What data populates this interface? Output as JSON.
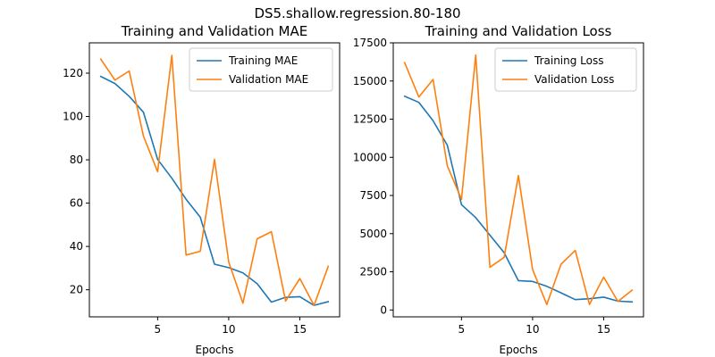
{
  "figure": {
    "suptitle": "DS5.shallow.regression.80-180"
  },
  "colors": {
    "training": "#1f77b4",
    "validation": "#ff7f0e",
    "axes": "#000000",
    "legend_border": "#cccccc"
  },
  "chart_data": [
    {
      "type": "line",
      "title": "Training and Validation MAE",
      "xlabel": "Epochs",
      "ylabel": "",
      "xlim": [
        0.2,
        17.8
      ],
      "ylim": [
        7.5,
        134
      ],
      "xticks": [
        5,
        10,
        15
      ],
      "yticks": [
        20,
        40,
        60,
        80,
        100,
        120
      ],
      "grid": false,
      "legend_position": "top-right",
      "x": [
        1,
        2,
        3,
        4,
        5,
        6,
        7,
        8,
        9,
        10,
        11,
        12,
        13,
        14,
        15,
        16,
        17
      ],
      "series": [
        {
          "name": "Training MAE",
          "color_key": "training",
          "values": [
            118.5,
            115.2,
            109.3,
            102,
            80.2,
            71.5,
            61.8,
            53.5,
            31.8,
            30.2,
            27.8,
            22.8,
            14.3,
            16.5,
            16.8,
            12.8,
            14.5
          ]
        },
        {
          "name": "Validation MAE",
          "color_key": "validation",
          "values": [
            126.5,
            116.8,
            121,
            91,
            74.5,
            128.2,
            36,
            37.8,
            80.2,
            32.8,
            13.8,
            43.5,
            46.8,
            14.8,
            25.2,
            12.8,
            30.8
          ]
        }
      ]
    },
    {
      "type": "line",
      "title": "Training and Validation Loss",
      "xlabel": "Epochs",
      "ylabel": "",
      "xlim": [
        0.2,
        17.8
      ],
      "ylim": [
        -450,
        17500
      ],
      "xticks": [
        5,
        10,
        15
      ],
      "yticks": [
        0,
        2500,
        5000,
        7500,
        10000,
        12500,
        15000,
        17500
      ],
      "grid": false,
      "legend_position": "top-right",
      "x": [
        1,
        2,
        3,
        4,
        5,
        6,
        7,
        8,
        9,
        10,
        11,
        12,
        13,
        14,
        15,
        16,
        17
      ],
      "series": [
        {
          "name": "Training Loss",
          "color_key": "training",
          "values": [
            14000,
            13600,
            12400,
            10800,
            6900,
            6050,
            4900,
            3750,
            1920,
            1870,
            1550,
            1120,
            680,
            740,
            840,
            580,
            530
          ]
        },
        {
          "name": "Validation Loss",
          "color_key": "validation",
          "values": [
            16200,
            13950,
            15100,
            9450,
            7250,
            16700,
            2800,
            3450,
            8800,
            2650,
            360,
            3000,
            3900,
            360,
            2150,
            560,
            1300
          ]
        }
      ]
    }
  ]
}
